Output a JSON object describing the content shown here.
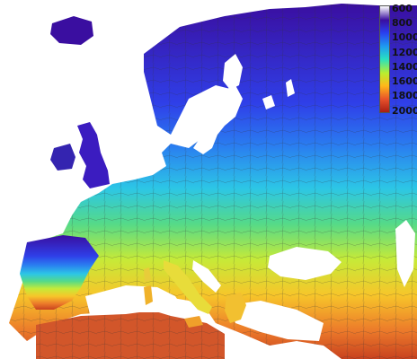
{
  "legend": {
    "labels": [
      "600",
      "800",
      "1000",
      "1200",
      "1400",
      "1600",
      "1800",
      "2000"
    ],
    "colors": [
      "#ffffff",
      "#3a0ea0",
      "#2a3ff0",
      "#1f9bf0",
      "#29e0c0",
      "#b8ee30",
      "#ffb81a",
      "#e6502a",
      "#a81e14"
    ]
  },
  "map": {
    "land_low": "#3b10a6",
    "land_mid": "#2d7bf0",
    "land_teal": "#34d5d5",
    "land_green": "#5fd96a",
    "land_yellow": "#f0e23a",
    "land_orange": "#f4a22a",
    "land_red": "#d2562a",
    "sea": "#ffffff",
    "border": "#333333"
  }
}
